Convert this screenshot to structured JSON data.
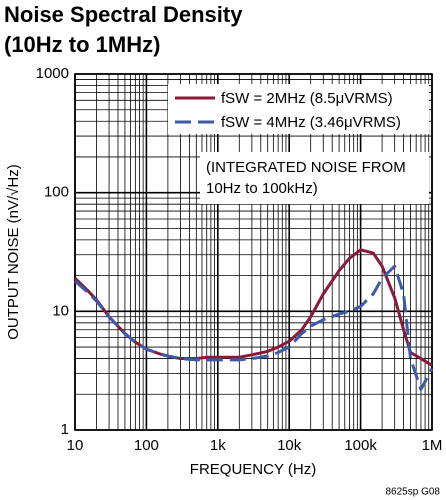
{
  "chart_data": {
    "type": "line",
    "title": "Noise Spectral Density",
    "subtitle": "(10Hz to 1MHz)",
    "x_label": "FREQUENCY (Hz)",
    "y_label": "OUTPUT NOISE (nV/√Hz)",
    "annotations": [
      "(INTEGRATED NOISE FROM",
      "10Hz to 100kHz)"
    ],
    "footnote": "8625sp G08",
    "log_x": true,
    "log_y": true,
    "grid": true,
    "minor_grid": true,
    "legend": "top-right",
    "xlim": [
      10,
      1000000
    ],
    "ylim": [
      1,
      1000
    ],
    "xticks": [
      10,
      100,
      {
        "value": 1000,
        "label": "1k"
      },
      {
        "value": 10000,
        "label": "10k"
      },
      {
        "value": 100000,
        "label": "100k"
      },
      {
        "value": 1000000,
        "label": "1M"
      }
    ],
    "yticks": [
      1,
      10,
      100,
      1000
    ],
    "x": [
      10,
      15,
      20,
      30,
      50,
      70,
      100,
      150,
      200,
      300,
      500,
      700,
      1000,
      2000,
      3000,
      5000,
      7000,
      10000,
      15000,
      20000,
      30000,
      50000,
      70000,
      100000,
      150000,
      200000,
      300000,
      400000,
      500000,
      700000,
      1000000
    ],
    "series": [
      {
        "name": "fSW = 2MHz (8.5μVRMS)",
        "color": "#8b1a3a",
        "dashed": false,
        "values": [
          19,
          15,
          12.5,
          9,
          6.5,
          5.5,
          4.8,
          4.4,
          4.2,
          4.0,
          4.0,
          4.1,
          4.1,
          4.1,
          4.3,
          4.6,
          5,
          5.6,
          7,
          9,
          14,
          22,
          28,
          33,
          31,
          24,
          13,
          7,
          4.5,
          4,
          3.5
        ]
      },
      {
        "name": "fSW = 4MHz (3.46μVRMS)",
        "color": "#3b5aa8",
        "dashed": true,
        "values": [
          18,
          14.5,
          12.2,
          9,
          6.5,
          5.5,
          4.8,
          4.4,
          4.2,
          4.0,
          3.9,
          3.9,
          3.9,
          3.9,
          4.0,
          4.2,
          4.5,
          5,
          6.5,
          7.5,
          8.5,
          9.5,
          10,
          11,
          14,
          19,
          24,
          14,
          4,
          2.2,
          3.3
        ]
      }
    ]
  }
}
